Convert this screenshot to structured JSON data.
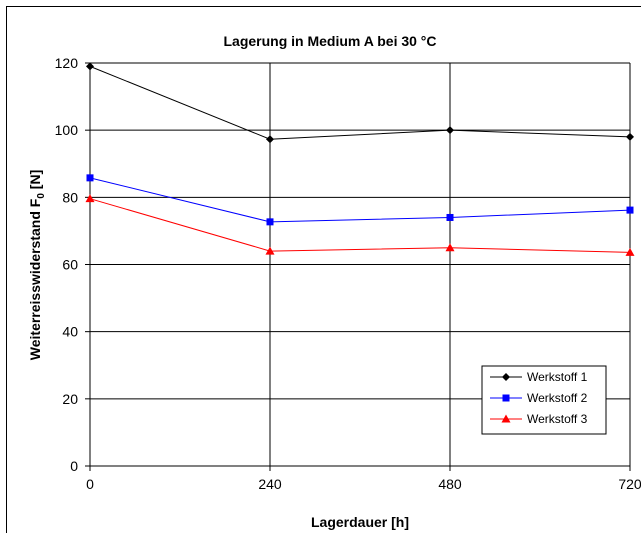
{
  "chart_data": {
    "type": "line",
    "title": "Lagerung in Medium A bei 30 °C",
    "xlabel": "Lagerdauer [h]",
    "ylabel": "Weiterreisswiderstand F",
    "ylabel_subscript": "0",
    "ylabel_unit": " [N]",
    "x": [
      0,
      240,
      480,
      720
    ],
    "x_ticks": [
      0,
      240,
      480,
      720
    ],
    "xlim": [
      0,
      720
    ],
    "ylim": [
      0,
      120
    ],
    "y_ticks": [
      0,
      20,
      40,
      60,
      80,
      100,
      120
    ],
    "grid": true,
    "legend_position": "bottom-right",
    "series": [
      {
        "name": "Werkstoff 1",
        "values": [
          119,
          97.3,
          100,
          98
        ],
        "color": "#000000",
        "marker": "diamond"
      },
      {
        "name": "Werkstoff 2",
        "values": [
          85.8,
          72.7,
          74,
          76.2
        ],
        "color": "#0000ff",
        "marker": "square"
      },
      {
        "name": "Werkstoff 3",
        "values": [
          79.6,
          64,
          65,
          63.6
        ],
        "color": "#ff0000",
        "marker": "triangle"
      }
    ]
  }
}
